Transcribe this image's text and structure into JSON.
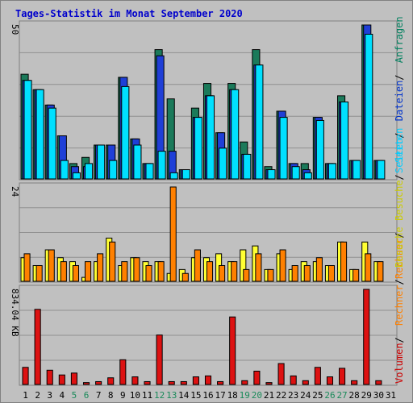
{
  "title": "Tages-Statistik im Monat September 2020",
  "chart_data": [
    {
      "type": "bar",
      "panel": "top",
      "ymax_label": "50",
      "ylim": [
        0,
        50
      ],
      "legend": [
        {
          "text": "Anfragen",
          "color": "#00805f"
        },
        {
          "text": "Dateien",
          "color": "#0033cc"
        },
        {
          "text": "Seiten",
          "color": "#00ccff"
        }
      ],
      "categories": [
        "1",
        "2",
        "3",
        "4",
        "5",
        "6",
        "7",
        "8",
        "9",
        "10",
        "11",
        "12",
        "13",
        "14",
        "15",
        "16",
        "17",
        "18",
        "19",
        "20",
        "21",
        "22",
        "23",
        "24",
        "25",
        "26",
        "27",
        "28",
        "29",
        "30",
        "31"
      ],
      "series": [
        {
          "name": "Anfragen",
          "color": "#1b7a5a",
          "values": [
            34,
            29,
            24,
            14,
            5,
            7,
            11,
            11,
            33,
            13,
            5,
            42,
            26,
            3,
            23,
            31,
            15,
            31,
            12,
            42,
            4,
            22,
            5,
            5,
            20,
            5,
            27,
            6,
            50,
            6,
            0
          ]
        },
        {
          "name": "Dateien",
          "color": "#1f3fd7",
          "values": [
            32,
            29,
            24,
            14,
            4,
            4,
            11,
            11,
            33,
            13,
            5,
            40,
            9,
            3,
            20,
            27,
            15,
            29,
            8,
            37,
            3,
            22,
            5,
            3,
            20,
            5,
            25,
            6,
            50,
            6,
            0
          ]
        },
        {
          "name": "Seiten",
          "color": "#00e0ff",
          "values": [
            32,
            29,
            23,
            6,
            2,
            5,
            11,
            6,
            30,
            11,
            5,
            9,
            2,
            3,
            20,
            27,
            10,
            29,
            8,
            37,
            3,
            20,
            4,
            2,
            19,
            5,
            25,
            6,
            47,
            6,
            0
          ]
        }
      ]
    },
    {
      "type": "bar",
      "panel": "middle",
      "ymax_label": "24",
      "ylim": [
        0,
        24
      ],
      "legend": [
        {
          "text": "Seiten",
          "color": "#00ccff"
        },
        {
          "text": "Besuche",
          "color": "#cccc00"
        },
        {
          "text": "Rechner",
          "color": "#ff8000"
        }
      ],
      "categories": [
        "1",
        "2",
        "3",
        "4",
        "5",
        "6",
        "7",
        "8",
        "9",
        "10",
        "11",
        "12",
        "13",
        "14",
        "15",
        "16",
        "17",
        "18",
        "19",
        "20",
        "21",
        "22",
        "23",
        "24",
        "25",
        "26",
        "27",
        "28",
        "29",
        "30",
        "31"
      ],
      "series": [
        {
          "name": "Besuche",
          "color": "#ffff33",
          "values": [
            6,
            4,
            8,
            6,
            5,
            1,
            5,
            11,
            4,
            6,
            5,
            5,
            2,
            3,
            6,
            6,
            7,
            5,
            8,
            9,
            3,
            7,
            3,
            5,
            5,
            4,
            10,
            3,
            10,
            5,
            0
          ]
        },
        {
          "name": "Rechner",
          "color": "#ff8000",
          "values": [
            7,
            4,
            8,
            5,
            4,
            5,
            7,
            10,
            5,
            6,
            4,
            5,
            24,
            2,
            8,
            5,
            4,
            5,
            3,
            7,
            3,
            8,
            4,
            4,
            6,
            4,
            10,
            3,
            7,
            5,
            0
          ]
        }
      ]
    },
    {
      "type": "bar",
      "panel": "bottom",
      "ymax_label": "834.04 KB",
      "ylim": [
        0,
        1000
      ],
      "legend": [
        {
          "text": "Besuche",
          "color": "#cccc00"
        },
        {
          "text": "Rechner",
          "color": "#ff8000"
        },
        {
          "text": "Volumen",
          "color": "#cc0000"
        }
      ],
      "categories": [
        "1",
        "2",
        "3",
        "4",
        "5",
        "6",
        "7",
        "8",
        "9",
        "10",
        "11",
        "12",
        "13",
        "14",
        "15",
        "16",
        "17",
        "18",
        "19",
        "20",
        "21",
        "22",
        "23",
        "24",
        "25",
        "26",
        "27",
        "28",
        "29",
        "30",
        "31"
      ],
      "series": [
        {
          "name": "Volumen",
          "color": "#dd1111",
          "values": [
            180,
            790,
            150,
            100,
            120,
            20,
            30,
            70,
            260,
            80,
            30,
            520,
            30,
            30,
            80,
            90,
            30,
            710,
            40,
            140,
            20,
            220,
            90,
            40,
            180,
            80,
            170,
            40,
            1000,
            40,
            0
          ]
        }
      ]
    }
  ],
  "weekend_color": "#1a8a5a",
  "day_colors": [
    "#000000",
    "#000000",
    "#000000",
    "#000000",
    "#1a8a5a",
    "#1a8a5a",
    "#000000",
    "#000000",
    "#000000",
    "#000000",
    "#000000",
    "#1a8a5a",
    "#1a8a5a",
    "#000000",
    "#000000",
    "#000000",
    "#000000",
    "#000000",
    "#1a8a5a",
    "#1a8a5a",
    "#000000",
    "#000000",
    "#000000",
    "#000000",
    "#000000",
    "#1a8a5a",
    "#1a8a5a",
    "#000000",
    "#000000",
    "#000000",
    "#000000"
  ]
}
